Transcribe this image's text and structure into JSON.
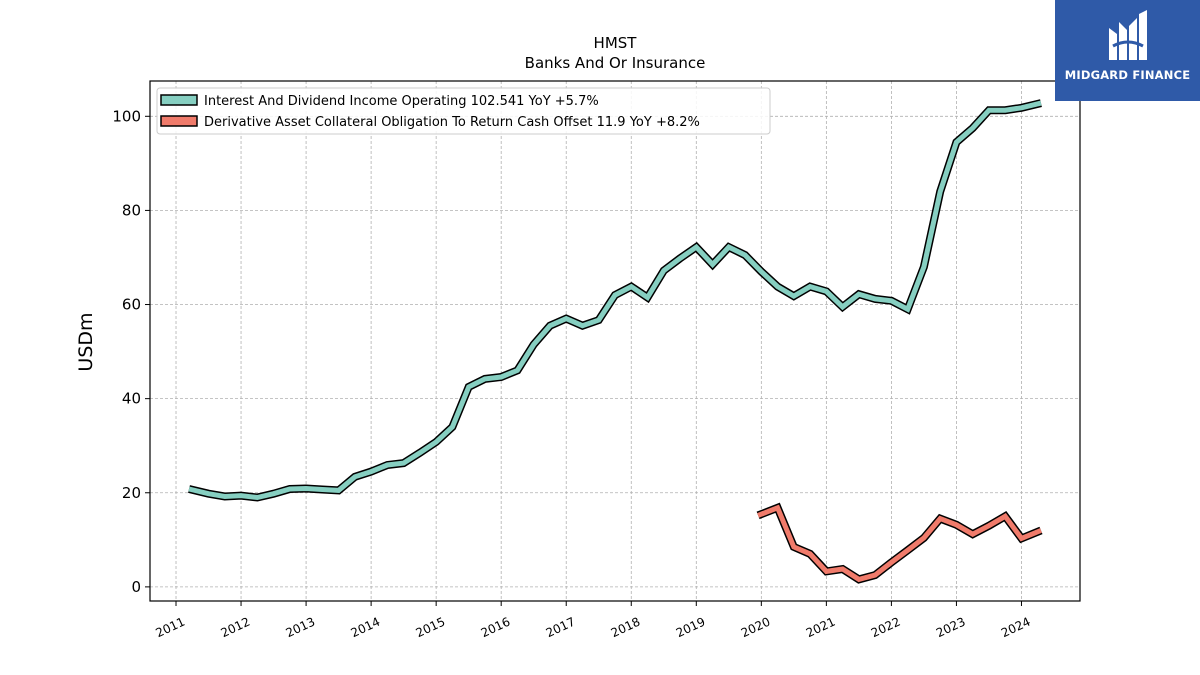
{
  "chart_data": {
    "type": "line",
    "title": "HMST",
    "subtitle": "Banks And Or Insurance",
    "ylabel": "USDm",
    "xlabel": "",
    "ylim": [
      -3,
      107.5
    ],
    "xlim": [
      2010.6,
      2024.9
    ],
    "yticks": [
      0,
      20,
      40,
      60,
      80,
      100
    ],
    "xticks": [
      "2011",
      "2012",
      "2013",
      "2014",
      "2015",
      "2016",
      "2017",
      "2018",
      "2019",
      "2020",
      "2021",
      "2022",
      "2023",
      "2024"
    ],
    "grid": true,
    "legend_position": "top-left",
    "series": [
      {
        "name": "Interest And Dividend Income Operating  102.541 YoY +5.7%",
        "color": "#86cfc1",
        "x": [
          2011.2,
          2011.5,
          2011.75,
          2012.0,
          2012.25,
          2012.5,
          2012.75,
          2013.0,
          2013.25,
          2013.5,
          2013.75,
          2014.0,
          2014.25,
          2014.5,
          2014.75,
          2015.0,
          2015.25,
          2015.5,
          2015.75,
          2016.0,
          2016.25,
          2016.5,
          2016.75,
          2017.0,
          2017.25,
          2017.5,
          2017.75,
          2018.0,
          2018.25,
          2018.5,
          2018.75,
          2019.0,
          2019.25,
          2019.5,
          2019.75,
          2020.0,
          2020.25,
          2020.5,
          2020.75,
          2021.0,
          2021.25,
          2021.5,
          2021.75,
          2022.0,
          2022.25,
          2022.5,
          2022.75,
          2023.0,
          2023.25,
          2023.5,
          2023.75,
          2024.0,
          2024.3
        ],
        "y": [
          20.8,
          19.8,
          19.2,
          19.4,
          19.0,
          19.8,
          20.8,
          20.9,
          20.7,
          20.5,
          23.4,
          24.5,
          25.9,
          26.3,
          28.5,
          30.8,
          34.0,
          42.5,
          44.2,
          44.6,
          46.0,
          51.5,
          55.5,
          57.0,
          55.5,
          56.7,
          62.0,
          63.8,
          61.5,
          67.2,
          69.8,
          72.2,
          68.5,
          72.2,
          70.5,
          67.0,
          63.8,
          61.8,
          63.8,
          62.8,
          59.5,
          62.2,
          61.2,
          60.8,
          59.0,
          68.0,
          84.0,
          94.5,
          97.5,
          101.3,
          101.3,
          101.8,
          102.8
        ]
      },
      {
        "name": "Derivative Asset Collateral Obligation To Return Cash Offset  11.9 YoY +8.2%",
        "color": "#f07b6b",
        "x": [
          2019.95,
          2020.25,
          2020.5,
          2020.75,
          2021.0,
          2021.25,
          2021.5,
          2021.75,
          2022.0,
          2022.25,
          2022.5,
          2022.75,
          2023.0,
          2023.25,
          2023.5,
          2023.75,
          2024.0,
          2024.3
        ],
        "y": [
          15.2,
          16.8,
          8.5,
          7.0,
          3.3,
          3.8,
          1.6,
          2.5,
          5.2,
          7.8,
          10.4,
          14.5,
          13.2,
          11.2,
          13.0,
          15.0,
          10.3,
          12.0
        ]
      }
    ]
  },
  "logo": {
    "text": "MIDGARD FINANCE",
    "background": "#2f5aa8"
  }
}
